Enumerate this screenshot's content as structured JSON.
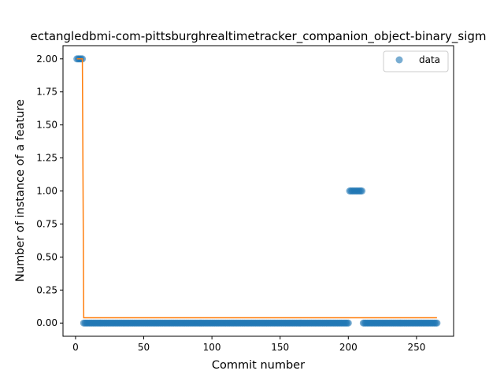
{
  "chart_data": {
    "type": "scatter",
    "title": "ectangledbmi-com-pittsburghrealtimetracker_companion_object-binary_sigm",
    "xlabel": "Commit number",
    "ylabel": "Number of instance of a feature",
    "xlim": [
      -9.2,
      277.2
    ],
    "ylim": [
      -0.1,
      2.1
    ],
    "xticks": [
      0,
      50,
      100,
      150,
      200,
      250
    ],
    "yticks": [
      0.0,
      0.25,
      0.5,
      0.75,
      1.0,
      1.25,
      1.5,
      1.75,
      2.0
    ],
    "xtick_labels": [
      "0",
      "50",
      "100",
      "150",
      "200",
      "250"
    ],
    "ytick_labels": [
      "0.00",
      "0.25",
      "0.50",
      "0.75",
      "1.00",
      "1.25",
      "1.50",
      "1.75",
      "2.00"
    ],
    "legend": {
      "entries": [
        "data"
      ],
      "placement": "upper right"
    },
    "grid": false,
    "series": [
      {
        "name": "data",
        "kind": "scatter",
        "color": "#1f77b4",
        "alpha": 0.6,
        "segments": [
          {
            "x_start": 1,
            "x_end": 5,
            "y": 2
          },
          {
            "x_start": 6,
            "x_end": 200,
            "y": 0
          },
          {
            "x_start": 201,
            "x_end": 210,
            "y": 1
          },
          {
            "x_start": 211,
            "x_end": 265,
            "y": 0
          }
        ]
      },
      {
        "kind": "step-line",
        "color": "#ff7f0e",
        "points": [
          [
            1,
            2.0
          ],
          [
            5,
            2.0
          ],
          [
            6,
            0.04
          ],
          [
            265,
            0.04
          ]
        ]
      }
    ]
  }
}
